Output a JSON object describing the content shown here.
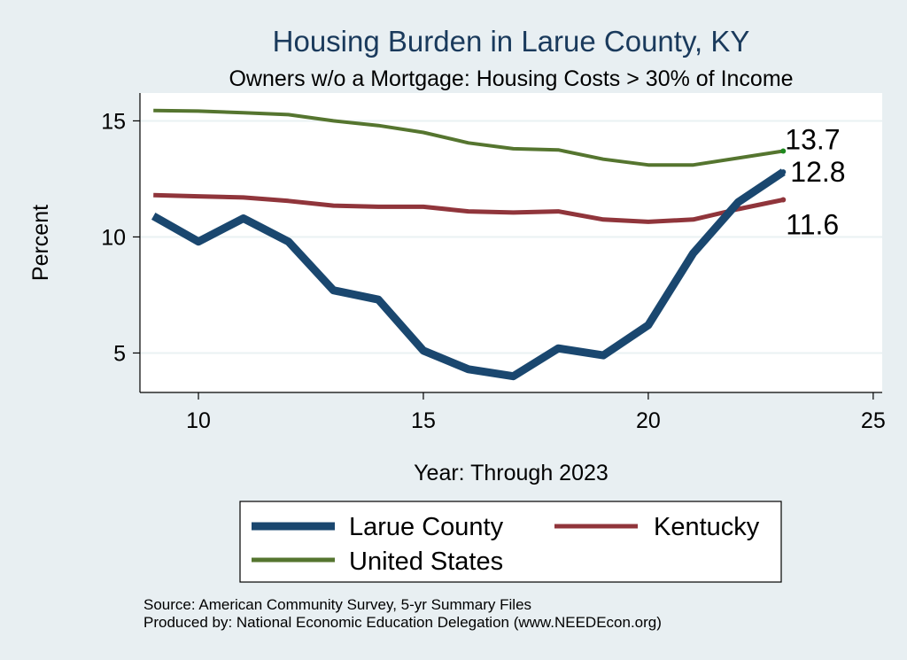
{
  "chart_data": {
    "type": "line",
    "title": "Housing Burden in Larue County, KY",
    "subtitle": "Owners w/o a Mortgage: Housing Costs > 30% of Income",
    "xlabel": "Year: Through 2023",
    "ylabel": "Percent",
    "xlim": [
      8.7,
      25.2
    ],
    "ylim": [
      3.3,
      16.2
    ],
    "xticks": [
      10,
      15,
      20,
      25
    ],
    "yticks": [
      5,
      10,
      15
    ],
    "grid": true,
    "legend_position": "bottom",
    "x": [
      9,
      10,
      11,
      12,
      13,
      14,
      15,
      16,
      17,
      18,
      19,
      20,
      21,
      22,
      23
    ],
    "series": [
      {
        "name": "Larue County",
        "color": "#1a476f",
        "values": [
          10.9,
          9.8,
          10.8,
          9.8,
          7.7,
          7.3,
          5.1,
          4.3,
          4.0,
          5.2,
          4.9,
          6.2,
          9.3,
          11.5,
          12.8
        ],
        "end_label": "12.8"
      },
      {
        "name": "Kentucky",
        "color": "#90353b",
        "values": [
          11.8,
          11.75,
          11.7,
          11.55,
          11.35,
          11.3,
          11.3,
          11.1,
          11.05,
          11.1,
          10.75,
          10.65,
          10.75,
          11.2,
          11.6
        ],
        "end_label": "11.6"
      },
      {
        "name": "United States",
        "color": "#55752f",
        "values": [
          15.45,
          15.42,
          15.35,
          15.27,
          15.0,
          14.8,
          14.5,
          14.05,
          13.8,
          13.75,
          13.35,
          13.1,
          13.1,
          13.4,
          13.7
        ],
        "end_label": "13.7"
      }
    ]
  },
  "legend": {
    "items": [
      {
        "label": "Larue County"
      },
      {
        "label": "Kentucky"
      },
      {
        "label": "United States"
      }
    ]
  },
  "notes": {
    "source": "Source: American Community Survey, 5-yr Summary Files",
    "produced": "Produced by: National Economic Education Delegation (www.NEEDEcon.org)"
  }
}
